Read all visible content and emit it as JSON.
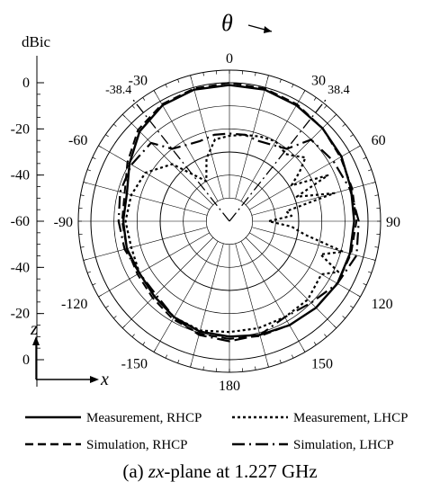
{
  "chart_data": {
    "type": "polar-line",
    "title": "",
    "unit_label": "dBic",
    "angle_axis_label": "θ",
    "angle_ticks": [
      "0",
      "30",
      "60",
      "90",
      "120",
      "150",
      "180",
      "-150",
      "-120",
      "-90",
      "-60",
      "-30"
    ],
    "angle_tick_values": [
      0,
      30,
      60,
      90,
      120,
      150,
      180,
      -150,
      -120,
      -90,
      -60,
      -30
    ],
    "radial_ticks_upper": [
      "0",
      "-20",
      "-40",
      "-60"
    ],
    "radial_ticks_lower": [
      "-40",
      "-20",
      "0"
    ],
    "radial_range": [
      -60,
      0
    ],
    "angle_markers": [
      {
        "label": "-38.4",
        "angle": -38.4
      },
      {
        "label": "38.4",
        "angle": 38.4
      }
    ],
    "axes_inset": {
      "vertical": "z",
      "horizontal": "x"
    },
    "series": [
      {
        "name": "Measurement, RHCP",
        "style": "solid",
        "angles": [
          -180,
          -165,
          -150,
          -135,
          -120,
          -105,
          -90,
          -75,
          -60,
          -45,
          -30,
          -15,
          0,
          15,
          30,
          45,
          60,
          75,
          90,
          105,
          120,
          135,
          150,
          165,
          180
        ],
        "values": [
          -10,
          -10.5,
          -12,
          -14,
          -15,
          -14,
          -14,
          -14,
          -10,
          -5,
          -2,
          -1,
          -1,
          -1,
          -2,
          -3,
          -4,
          -5.5,
          -6,
          -6,
          -6,
          -7,
          -8,
          -9,
          -10
        ]
      },
      {
        "name": "Measurement, LHCP",
        "style": "dotted",
        "angles": [
          -180,
          -165,
          -150,
          -135,
          -120,
          -105,
          -90,
          -75,
          -60,
          -45,
          -30,
          -20,
          -10,
          0,
          10,
          20,
          30,
          40,
          45,
          50,
          55,
          60,
          65,
          70,
          75,
          80,
          85,
          90,
          95,
          100,
          105,
          110,
          115,
          120,
          135,
          150,
          165,
          180
        ],
        "values": [
          -12,
          -11,
          -12,
          -14,
          -15,
          -16,
          -15,
          -16,
          -18,
          -25,
          -40,
          -31,
          -24,
          -23,
          -22,
          -21,
          -20,
          -22,
          -20,
          -17,
          -23,
          -29,
          -13,
          -29,
          -13,
          -35,
          -33,
          -43,
          -33,
          -27,
          -9,
          -18,
          -8,
          -14,
          -12,
          -12,
          -12,
          -12
        ]
      },
      {
        "name": "Simulation, RHCP",
        "style": "dashed",
        "angles": [
          -180,
          -165,
          -150,
          -135,
          -120,
          -105,
          -90,
          -75,
          -60,
          -45,
          -30,
          -15,
          0,
          15,
          30,
          45,
          60,
          75,
          90,
          105,
          120,
          135,
          150,
          165,
          180
        ],
        "values": [
          -9,
          -9.5,
          -11,
          -13,
          -14,
          -14,
          -13.5,
          -13,
          -9,
          -4,
          -1.5,
          -0.5,
          0,
          -0.5,
          -1.5,
          -3,
          -4.5,
          -5,
          -5,
          -5.5,
          -6,
          -7,
          -8,
          -8.5,
          -9
        ]
      },
      {
        "name": "Simulation, LHCP",
        "style": "dashdot",
        "angles": [
          -180,
          -165,
          -150,
          -135,
          -120,
          -105,
          -90,
          -75,
          -60,
          -45,
          -38.4,
          -30,
          -20,
          -10,
          0,
          10,
          20,
          30,
          38.4,
          45,
          60,
          75,
          90,
          105,
          120,
          135,
          150,
          165,
          180
        ],
        "values": [
          -8,
          -9,
          -12,
          -15,
          -15,
          -13,
          -12,
          -11,
          -11,
          -12,
          -20,
          -22,
          -23,
          -22,
          -22,
          -22,
          -23,
          -22,
          -20,
          -10,
          -8,
          -6,
          -4,
          -3,
          -6,
          -10,
          -12,
          -9,
          -8
        ]
      }
    ],
    "legend": {
      "placement": "bottom",
      "entries": [
        "Measurement, RHCP",
        "Measurement, LHCP",
        "Simulation, RHCP",
        "Simulation, LHCP"
      ]
    },
    "caption": {
      "prefix": "(a) ",
      "plane": "zx",
      "suffix": "-plane at 1.227 GHz"
    }
  }
}
